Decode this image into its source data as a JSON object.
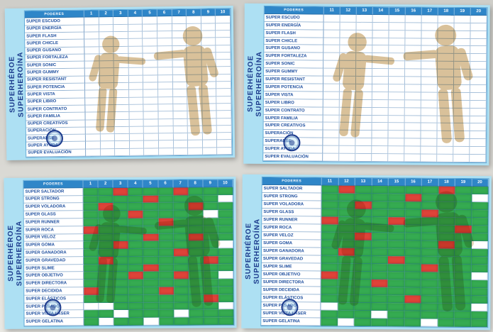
{
  "colors": {
    "green": "#35ab51",
    "red": "#de4339",
    "panel_bg": "#ade0f3",
    "header_blue": "#2f86c8",
    "label_text": "#1d4e9e",
    "title_text": "#1b3a8c",
    "tan": "#b6873c"
  },
  "chart_data": [
    {
      "type": "heatmap",
      "name": "top-left",
      "title_line1": "SUPERHÉROE",
      "title_line2": "SUPERHEROÍNA",
      "corner_label": "PODERES",
      "columns": [
        "1",
        "2",
        "3",
        "4",
        "5",
        "6",
        "7",
        "8",
        "9",
        "10"
      ],
      "legend": {
        "G": "green filled",
        "R": "red filled",
        "W": "empty"
      },
      "rows": [
        {
          "label": "SUPER ESCUDO",
          "cells": "WWWWWWWWWW"
        },
        {
          "label": "SUPER ENERGÍA",
          "cells": "WWWWWWWWWW"
        },
        {
          "label": "SUPER FLASH",
          "cells": "WWWWWWWWWW"
        },
        {
          "label": "SUPER CHICLE",
          "cells": "WWWWWWWWWW"
        },
        {
          "label": "SUPER GUSANO",
          "cells": "WWWWWWWWWW"
        },
        {
          "label": "SUPER FORTALEZA",
          "cells": "WWWWWWWWWW"
        },
        {
          "label": "SUPER SONIC",
          "cells": "WWWWWWWWWW"
        },
        {
          "label": "SUPER GUMMY",
          "cells": "WWWWWWWWWW"
        },
        {
          "label": "SUPER RESISTANT",
          "cells": "WWWWWWWWWW"
        },
        {
          "label": "SUPER POTENCIA",
          "cells": "WWWWWWWWWW"
        },
        {
          "label": "SUPER VISTA",
          "cells": "WWWWWWWWWW"
        },
        {
          "label": "SUPER LIBRO",
          "cells": "WWWWWWWWWW"
        },
        {
          "label": "SUPER CONTRATO",
          "cells": "WWWWWWWWWW"
        },
        {
          "label": "SUPER FAMILIA",
          "cells": "WWWWWWWWWW"
        },
        {
          "label": "SUPER CREATIVOS",
          "cells": "WWWWWWWWWW"
        },
        {
          "label": "SUPERACIÓN",
          "cells": "WWWWWWWWWW"
        },
        {
          "label": "SUPERARSE",
          "cells": "WWWWWWWWWW"
        },
        {
          "label": "SUPER AYUDA",
          "cells": "WWWWWWWWWW"
        },
        {
          "label": "SUPER EVALUACIÓN",
          "cells": "WWWWWWWWWW"
        }
      ]
    },
    {
      "type": "heatmap",
      "name": "top-right",
      "title_line1": "SUPERHÉROE",
      "title_line2": "SUPERHEROÍNA",
      "corner_label": "PODERES",
      "columns": [
        "11",
        "12",
        "13",
        "14",
        "15",
        "16",
        "17",
        "18",
        "19",
        "20"
      ],
      "legend": {
        "G": "green filled",
        "R": "red filled",
        "W": "empty"
      },
      "rows": [
        {
          "label": "SUPER ESCUDO",
          "cells": "WWWWWWWWWW"
        },
        {
          "label": "SUPER ENERGÍA",
          "cells": "WWWWWWWWWW"
        },
        {
          "label": "SUPER FLASH",
          "cells": "WWWWWWWWWW"
        },
        {
          "label": "SUPER CHICLE",
          "cells": "WWWWWWWWWW"
        },
        {
          "label": "SUPER GUSANO",
          "cells": "WWWWWWWWWW"
        },
        {
          "label": "SUPER FORTALEZA",
          "cells": "WWWWWWWWWW"
        },
        {
          "label": "SUPER SONIC",
          "cells": "WWWWWWWWWW"
        },
        {
          "label": "SUPER GUMMY",
          "cells": "WWWWWWWWWW"
        },
        {
          "label": "SUPER RESISTANT",
          "cells": "WWWWWWWWWW"
        },
        {
          "label": "SUPER POTENCIA",
          "cells": "WWWWWWWWWW"
        },
        {
          "label": "SUPER VISTA",
          "cells": "WWWWWWWWWW"
        },
        {
          "label": "SUPER LIBRO",
          "cells": "WWWWWWWWWW"
        },
        {
          "label": "SUPER CONTRATO",
          "cells": "WWWWWWWWWW"
        },
        {
          "label": "SUPER FAMILIA",
          "cells": "WWWWWWWWWW"
        },
        {
          "label": "SUPER CREATIVOS",
          "cells": "WWWWWWWWWW"
        },
        {
          "label": "SUPERACIÓN",
          "cells": "WWWWWWWWWW"
        },
        {
          "label": "SUPERARSE",
          "cells": "WWWWWWWWWW"
        },
        {
          "label": "SUPER AYUDA",
          "cells": "WWWWWWWWWW"
        },
        {
          "label": "SUPER EVALUACIÓN",
          "cells": "WWWWWWWWWW"
        }
      ]
    },
    {
      "type": "heatmap",
      "name": "bottom-left",
      "title_line1": "SUPERHÉROE",
      "title_line2": "SUPERHEROÍNA",
      "corner_label": "PODERES",
      "columns": [
        "1",
        "2",
        "3",
        "4",
        "5",
        "6",
        "7",
        "8",
        "9",
        "10"
      ],
      "legend": {
        "G": "green filled",
        "R": "red filled",
        "W": "empty"
      },
      "rows": [
        {
          "label": "SUPER SALTADOR",
          "cells": "GGRGGGRGGG"
        },
        {
          "label": "SUPER STRONG",
          "cells": "GGGGRGGGGW"
        },
        {
          "label": "SUPER VOLADORA",
          "cells": "GRGGGGGRGG"
        },
        {
          "label": "SUPER GLASS",
          "cells": "GGGRGGGGWG"
        },
        {
          "label": "SUPER RUNNER",
          "cells": "GGGGGRGGGG"
        },
        {
          "label": "SUPER ROCA",
          "cells": "RGGGGGGGGG"
        },
        {
          "label": "SUPER VELOZ",
          "cells": "GGGGRGGRGG"
        },
        {
          "label": "SUPER GOMA",
          "cells": "GGRGGGGGGW"
        },
        {
          "label": "SUPER GANADORA",
          "cells": "GGGGGGRGGG"
        },
        {
          "label": "SUPER GRAVEDAD",
          "cells": "GRGGGGGGRG"
        },
        {
          "label": "SUPER SLIME",
          "cells": "GGGGRGGGGG"
        },
        {
          "label": "SUPER OBJETIVO",
          "cells": "GGGRGGRGGW"
        },
        {
          "label": "SUPER DIRECTORA",
          "cells": "GGGGGGGGGG"
        },
        {
          "label": "SUPER DECIDIDA",
          "cells": "RGGGGRGGGG"
        },
        {
          "label": "SUPER ELÁSTICOS",
          "cells": "GGGGGGGGRG"
        },
        {
          "label": "SUPER PESADO",
          "cells": "WWGGGGGGGW"
        },
        {
          "label": "SUPER VISTA LASER",
          "cells": "GGWGGGWGGG"
        },
        {
          "label": "SUPER GELATINA",
          "cells": "GWGGWGGGGG"
        }
      ]
    },
    {
      "type": "heatmap",
      "name": "bottom-right",
      "title_line1": "SUPERHÉROE",
      "title_line2": "SUPERHEROÍNA",
      "corner_label": "PODERES",
      "columns": [
        "11",
        "12",
        "13",
        "14",
        "15",
        "16",
        "17",
        "18",
        "19",
        "20"
      ],
      "legend": {
        "G": "green filled",
        "R": "red filled",
        "W": "empty"
      },
      "rows": [
        {
          "label": "SUPER SALTADOR",
          "cells": "GRGGGGGRGG"
        },
        {
          "label": "SUPER STRONG",
          "cells": "GGGGGRGGGW"
        },
        {
          "label": "SUPER VOLADORA",
          "cells": "GGRGGGGGGG"
        },
        {
          "label": "SUPER GLASS",
          "cells": "GGGGGGRGGG"
        },
        {
          "label": "SUPER RUNNER",
          "cells": "RGGGRGGGGG"
        },
        {
          "label": "SUPER ROCA",
          "cells": "GGGGGGGGRG"
        },
        {
          "label": "SUPER VELOZ",
          "cells": "GGRGGGGGGG"
        },
        {
          "label": "SUPER GOMA",
          "cells": "GGGGGGGRGW"
        },
        {
          "label": "SUPER GANADORA",
          "cells": "GRGGGGGGGG"
        },
        {
          "label": "SUPER GRAVEDAD",
          "cells": "GGGGRGGGGG"
        },
        {
          "label": "SUPER SLIME",
          "cells": "GGGGGGRGGG"
        },
        {
          "label": "SUPER OBJETIVO",
          "cells": "RGGGGGGGGW"
        },
        {
          "label": "SUPER DIRECTORA",
          "cells": "GGGRGGGGGG"
        },
        {
          "label": "SUPER DECIDIDA",
          "cells": "GGGGGGGGGG"
        },
        {
          "label": "SUPER ELÁSTICOS",
          "cells": "GGGGGRGGGG"
        },
        {
          "label": "SUPER PESADO",
          "cells": "WGGGGGGGGW"
        },
        {
          "label": "SUPER VISTA LASER",
          "cells": "GGGWGGGGGG"
        },
        {
          "label": "SUPER GELATINA",
          "cells": "GWGGGGWGGG"
        }
      ]
    }
  ]
}
